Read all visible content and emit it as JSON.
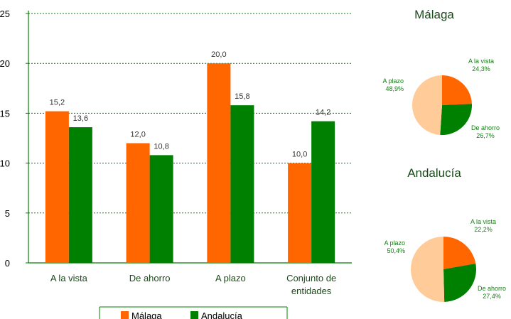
{
  "colors": {
    "malaga": "#ff6600",
    "andalucia": "#008000",
    "plazo_slice": "#ffcc99",
    "axis": "#008000",
    "grid": "#008000"
  },
  "chart_data": [
    {
      "type": "bar",
      "categories": [
        "A la vista",
        "De ahorro",
        "A plazo",
        "Conjunto de entidades"
      ],
      "category_lines": [
        [
          "A la vista"
        ],
        [
          "De ahorro"
        ],
        [
          "A plazo"
        ],
        [
          "Conjunto de",
          "entidades"
        ]
      ],
      "series": [
        {
          "name": "Málaga",
          "values": [
            15.2,
            12.0,
            20.0,
            10.0
          ],
          "labels": [
            "15,2",
            "12,0",
            "20,0",
            "10,0"
          ]
        },
        {
          "name": "Andalucía",
          "values": [
            13.6,
            10.8,
            15.8,
            14.2
          ],
          "labels": [
            "13,6",
            "10,8",
            "15,8",
            "14,2"
          ]
        }
      ],
      "ylim": [
        0,
        25
      ],
      "yticks": [
        0,
        5,
        10,
        15,
        20,
        25
      ],
      "grid": true,
      "legend": "bottom"
    },
    {
      "type": "pie",
      "title": "Málaga",
      "slices": [
        {
          "label": "A la vista",
          "value": 24.3,
          "text": "24,3%"
        },
        {
          "label": "De ahorro",
          "value": 26.7,
          "text": "26,7%"
        },
        {
          "label": "A plazo",
          "value": 48.9,
          "text": "48,9%"
        }
      ]
    },
    {
      "type": "pie",
      "title": "Andalucía",
      "slices": [
        {
          "label": "A la vista",
          "value": 22.2,
          "text": "22,2%"
        },
        {
          "label": "De ahorro",
          "value": 27.4,
          "text": "27,4%"
        },
        {
          "label": "A plazo",
          "value": 50.4,
          "text": "50,4%"
        }
      ]
    }
  ]
}
